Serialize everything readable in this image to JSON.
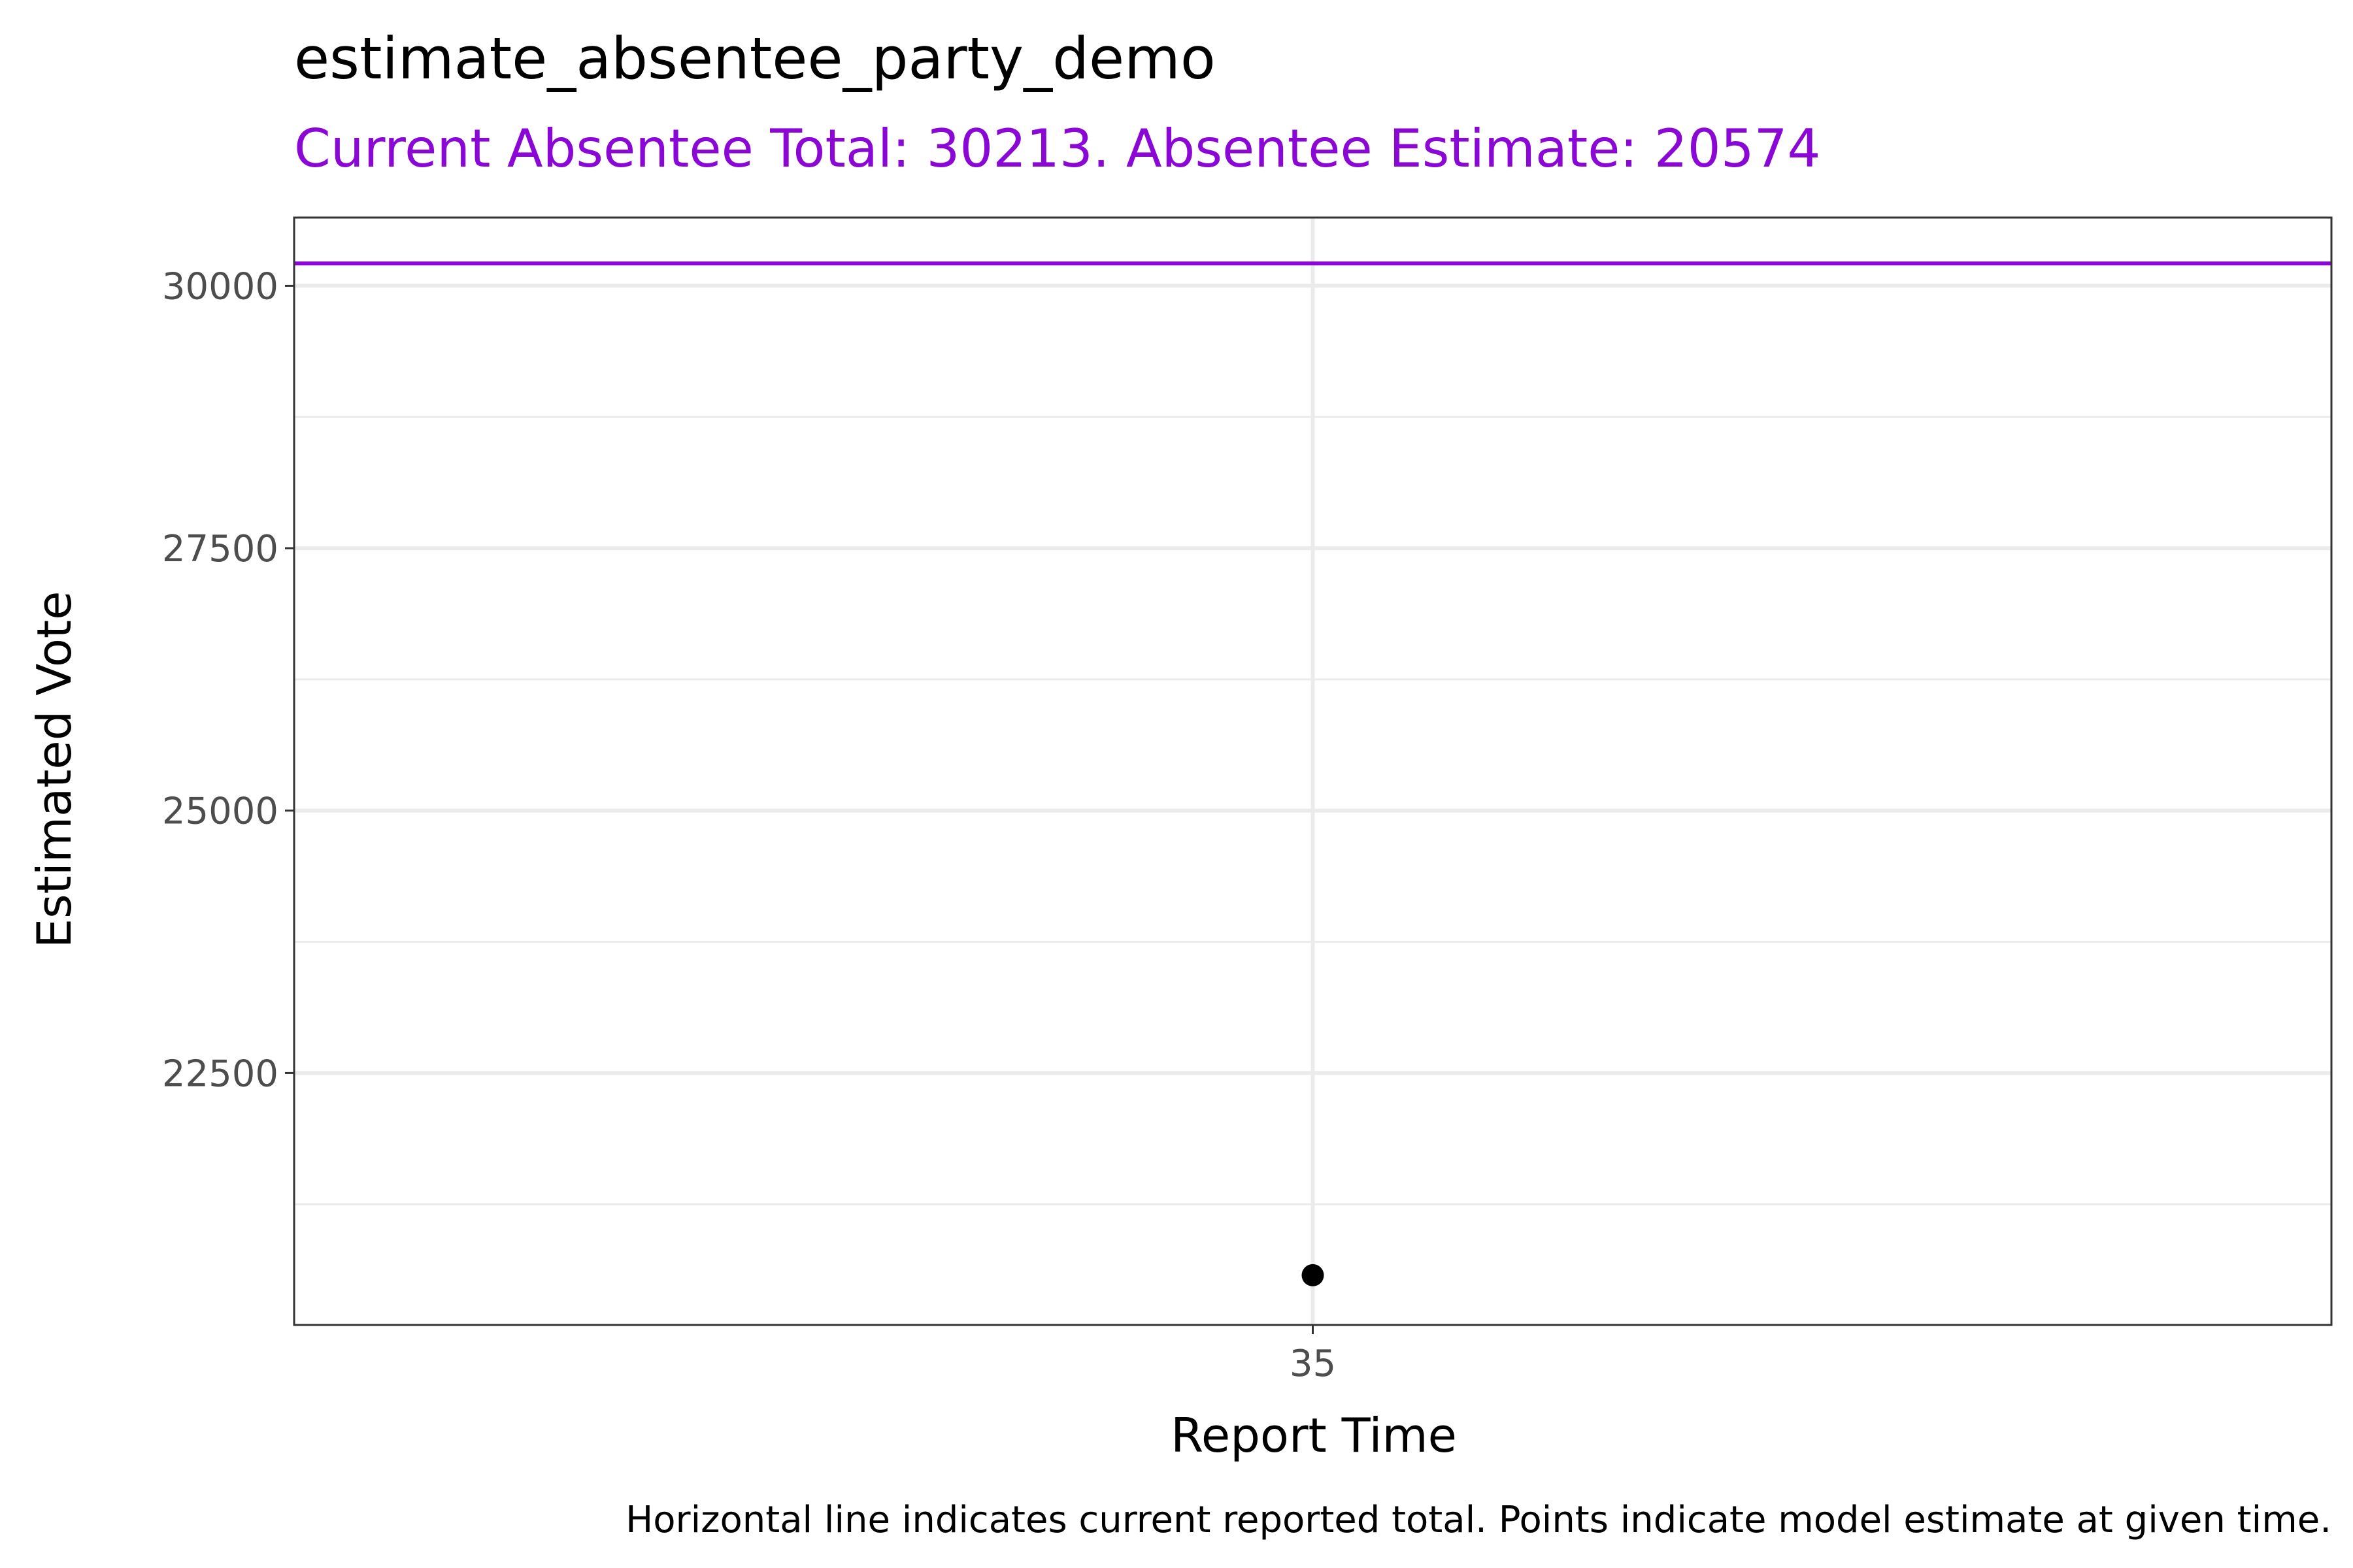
{
  "chart_data": {
    "type": "scatter",
    "title": "estimate_absentee_party_demo",
    "subtitle": "Current Absentee Total: 30213. Absentee Estimate: 20574",
    "xlabel": "Report Time",
    "ylabel": "Estimated Vote",
    "caption": "Horizontal line indicates current reported total. Points indicate model estimate at given time.",
    "x_ticks": [
      "35"
    ],
    "y_ticks": [
      22500,
      25000,
      27500,
      30000
    ],
    "y_tick_labels": [
      "22500",
      "25000",
      "27500",
      "30000"
    ],
    "y_minor_ticks": [
      21250,
      23750,
      26250,
      28750
    ],
    "ylim": [
      20100,
      30650
    ],
    "points": [
      {
        "x": "35",
        "y": 20574
      }
    ],
    "reference_line": {
      "y": 30213,
      "color": "#8b07d6"
    },
    "point_color": "#000000",
    "subtitle_color": "#8b07d6",
    "grid": true,
    "theme": "bw"
  }
}
